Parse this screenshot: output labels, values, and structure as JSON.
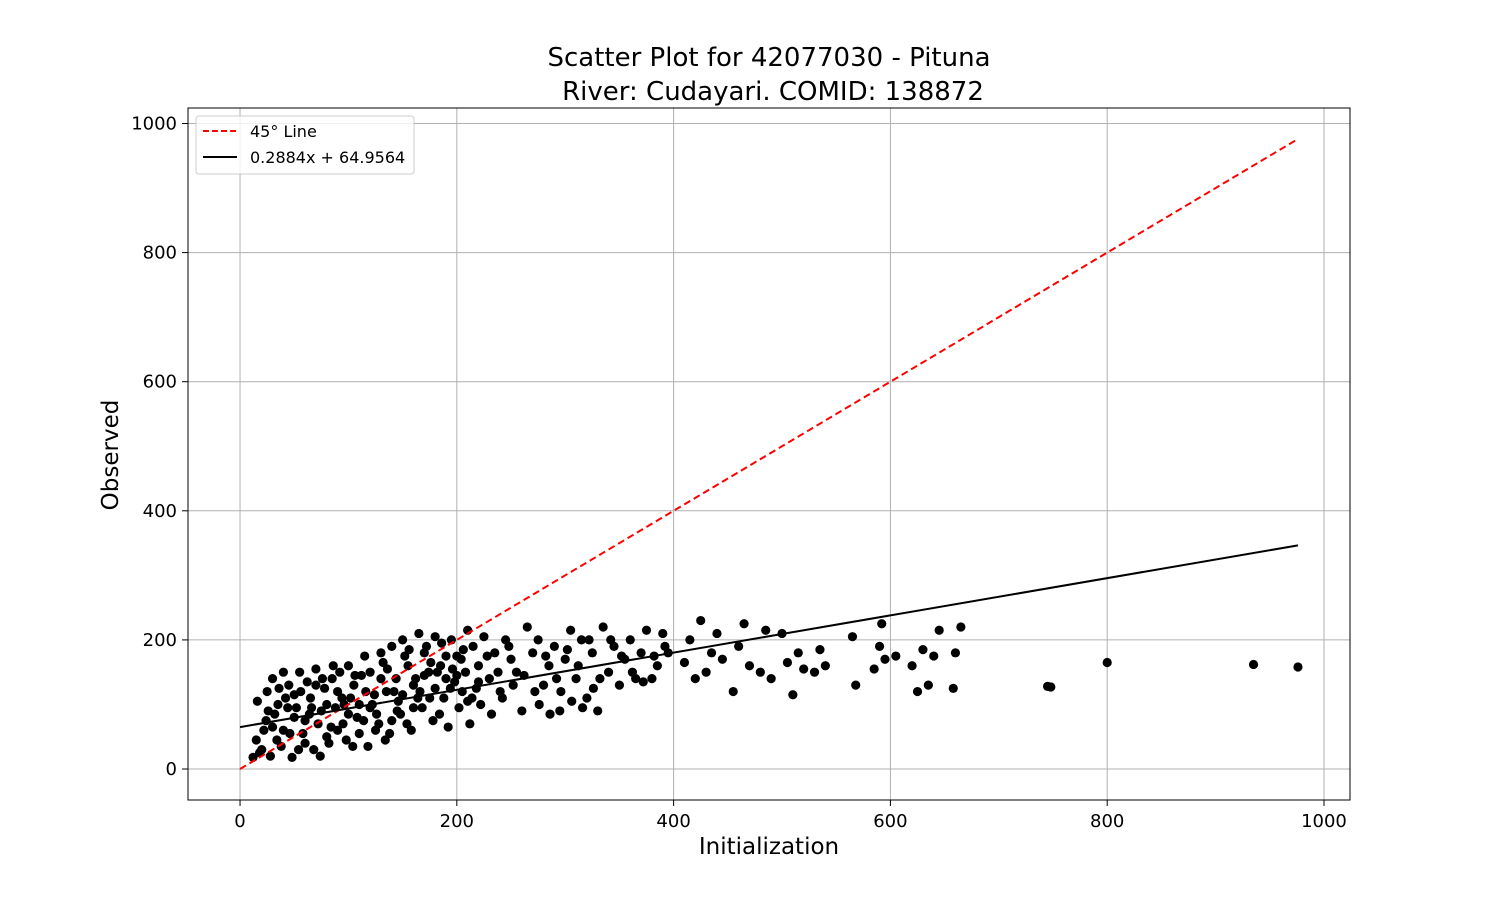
{
  "chart_data": {
    "type": "scatter",
    "title": "Scatter Plot for 42077030 - Pituna",
    "subtitle": "River: Cudayari. COMID: 138872",
    "xlabel": "Initialization",
    "ylabel": "Observed",
    "xlim": [
      -48,
      1024
    ],
    "ylim": [
      -48,
      1024
    ],
    "xticks": [
      0,
      200,
      400,
      600,
      800,
      1000
    ],
    "yticks": [
      0,
      200,
      400,
      600,
      800,
      1000
    ],
    "grid": true,
    "legend_position": "top-left",
    "series": [
      {
        "name": "45° Line",
        "kind": "line",
        "style": "dashed",
        "color": "#ff0000",
        "x": [
          0,
          976
        ],
        "y": [
          0,
          976
        ]
      },
      {
        "name": "0.2884x + 64.9564",
        "kind": "line",
        "style": "solid",
        "color": "#000000",
        "x": [
          0,
          976
        ],
        "y": [
          64.9564,
          346.44
        ]
      },
      {
        "name": "Observed vs Initialization",
        "kind": "points",
        "color": "#000000",
        "points": [
          [
            20,
            30
          ],
          [
            25,
            120
          ],
          [
            30,
            140
          ],
          [
            35,
            100
          ],
          [
            40,
            60
          ],
          [
            45,
            130
          ],
          [
            50,
            80
          ],
          [
            55,
            150
          ],
          [
            60,
            40
          ],
          [
            65,
            110
          ],
          [
            70,
            155
          ],
          [
            75,
            90
          ],
          [
            80,
            50
          ],
          [
            85,
            140
          ],
          [
            90,
            120
          ],
          [
            95,
            70
          ],
          [
            100,
            160
          ],
          [
            105,
            130
          ],
          [
            110,
            100
          ],
          [
            115,
            175
          ],
          [
            120,
            150
          ],
          [
            125,
            60
          ],
          [
            130,
            180
          ],
          [
            135,
            120
          ],
          [
            140,
            190
          ],
          [
            145,
            90
          ],
          [
            150,
            200
          ],
          [
            155,
            160
          ],
          [
            160,
            130
          ],
          [
            165,
            210
          ],
          [
            170,
            180
          ],
          [
            175,
            110
          ],
          [
            180,
            205
          ],
          [
            185,
            160
          ],
          [
            190,
            140
          ],
          [
            195,
            200
          ],
          [
            200,
            175
          ],
          [
            205,
            120
          ],
          [
            210,
            215
          ],
          [
            215,
            190
          ],
          [
            220,
            160
          ],
          [
            225,
            205
          ],
          [
            230,
            140
          ],
          [
            235,
            180
          ],
          [
            240,
            120
          ],
          [
            245,
            200
          ],
          [
            250,
            170
          ],
          [
            255,
            150
          ],
          [
            260,
            90
          ],
          [
            265,
            220
          ],
          [
            270,
            180
          ],
          [
            275,
            200
          ],
          [
            280,
            130
          ],
          [
            285,
            160
          ],
          [
            290,
            190
          ],
          [
            295,
            90
          ],
          [
            300,
            170
          ],
          [
            305,
            215
          ],
          [
            310,
            140
          ],
          [
            315,
            200
          ],
          [
            320,
            110
          ],
          [
            325,
            180
          ],
          [
            330,
            90
          ],
          [
            335,
            220
          ],
          [
            340,
            150
          ],
          [
            345,
            190
          ],
          [
            350,
            130
          ],
          [
            355,
            170
          ],
          [
            360,
            200
          ],
          [
            365,
            140
          ],
          [
            370,
            180
          ],
          [
            375,
            215
          ],
          [
            380,
            140
          ],
          [
            385,
            160
          ],
          [
            390,
            210
          ],
          [
            395,
            180
          ],
          [
            410,
            165
          ],
          [
            415,
            200
          ],
          [
            420,
            140
          ],
          [
            425,
            230
          ],
          [
            430,
            150
          ],
          [
            435,
            180
          ],
          [
            440,
            210
          ],
          [
            445,
            170
          ],
          [
            455,
            120
          ],
          [
            460,
            190
          ],
          [
            465,
            225
          ],
          [
            470,
            160
          ],
          [
            480,
            150
          ],
          [
            485,
            215
          ],
          [
            490,
            140
          ],
          [
            500,
            210
          ],
          [
            505,
            165
          ],
          [
            510,
            115
          ],
          [
            515,
            180
          ],
          [
            520,
            155
          ],
          [
            530,
            150
          ],
          [
            535,
            185
          ],
          [
            540,
            160
          ],
          [
            565,
            205
          ],
          [
            568,
            130
          ],
          [
            585,
            155
          ],
          [
            590,
            190
          ],
          [
            592,
            225
          ],
          [
            595,
            170
          ],
          [
            605,
            175
          ],
          [
            620,
            160
          ],
          [
            625,
            120
          ],
          [
            630,
            185
          ],
          [
            635,
            130
          ],
          [
            640,
            175
          ],
          [
            645,
            215
          ],
          [
            658,
            125
          ],
          [
            660,
            180
          ],
          [
            665,
            220
          ],
          [
            745,
            128
          ],
          [
            748,
            127
          ],
          [
            800,
            165
          ],
          [
            935,
            162
          ],
          [
            976,
            158
          ],
          [
            12,
            18
          ],
          [
            15,
            45
          ],
          [
            18,
            25
          ],
          [
            22,
            60
          ],
          [
            28,
            20
          ],
          [
            32,
            85
          ],
          [
            38,
            35
          ],
          [
            42,
            110
          ],
          [
            48,
            18
          ],
          [
            52,
            95
          ],
          [
            58,
            55
          ],
          [
            62,
            135
          ],
          [
            68,
            30
          ],
          [
            72,
            70
          ],
          [
            78,
            125
          ],
          [
            82,
            40
          ],
          [
            88,
            95
          ],
          [
            92,
            150
          ],
          [
            98,
            45
          ],
          [
            102,
            110
          ],
          [
            108,
            80
          ],
          [
            112,
            145
          ],
          [
            118,
            35
          ],
          [
            122,
            100
          ],
          [
            128,
            70
          ],
          [
            132,
            165
          ],
          [
            138,
            55
          ],
          [
            142,
            120
          ],
          [
            148,
            85
          ],
          [
            152,
            175
          ],
          [
            158,
            60
          ],
          [
            162,
            140
          ],
          [
            168,
            95
          ],
          [
            172,
            190
          ],
          [
            178,
            75
          ],
          [
            182,
            150
          ],
          [
            188,
            110
          ],
          [
            192,
            65
          ],
          [
            198,
            135
          ],
          [
            202,
            95
          ],
          [
            208,
            150
          ],
          [
            212,
            70
          ],
          [
            218,
            125
          ],
          [
            222,
            100
          ],
          [
            228,
            175
          ],
          [
            232,
            85
          ],
          [
            238,
            150
          ],
          [
            242,
            110
          ],
          [
            248,
            190
          ],
          [
            252,
            130
          ],
          [
            24,
            75
          ],
          [
            34,
            45
          ],
          [
            44,
            95
          ],
          [
            54,
            30
          ],
          [
            64,
            85
          ],
          [
            74,
            20
          ],
          [
            84,
            65
          ],
          [
            94,
            110
          ],
          [
            104,
            35
          ],
          [
            114,
            75
          ],
          [
            124,
            115
          ],
          [
            134,
            45
          ],
          [
            144,
            140
          ],
          [
            154,
            70
          ],
          [
            164,
            110
          ],
          [
            174,
            150
          ],
          [
            184,
            85
          ],
          [
            194,
            125
          ],
          [
            204,
            170
          ],
          [
            214,
            110
          ],
          [
            16,
            105
          ],
          [
            26,
            90
          ],
          [
            36,
            125
          ],
          [
            46,
            55
          ],
          [
            56,
            120
          ],
          [
            66,
            95
          ],
          [
            76,
            140
          ],
          [
            86,
            160
          ],
          [
            96,
            100
          ],
          [
            106,
            145
          ],
          [
            116,
            120
          ],
          [
            126,
            85
          ],
          [
            136,
            155
          ],
          [
            146,
            105
          ],
          [
            156,
            185
          ],
          [
            166,
            120
          ],
          [
            176,
            165
          ],
          [
            186,
            195
          ],
          [
            196,
            155
          ],
          [
            206,
            185
          ],
          [
            30,
            65
          ],
          [
            40,
            150
          ],
          [
            50,
            115
          ],
          [
            60,
            75
          ],
          [
            70,
            130
          ],
          [
            80,
            100
          ],
          [
            90,
            60
          ],
          [
            100,
            85
          ],
          [
            110,
            55
          ],
          [
            120,
            95
          ],
          [
            130,
            140
          ],
          [
            140,
            75
          ],
          [
            150,
            115
          ],
          [
            160,
            95
          ],
          [
            170,
            145
          ],
          [
            180,
            125
          ],
          [
            190,
            175
          ],
          [
            200,
            145
          ],
          [
            210,
            105
          ],
          [
            220,
            135
          ],
          [
            262,
            145
          ],
          [
            272,
            120
          ],
          [
            282,
            175
          ],
          [
            292,
            140
          ],
          [
            302,
            185
          ],
          [
            312,
            160
          ],
          [
            322,
            200
          ],
          [
            332,
            140
          ],
          [
            342,
            200
          ],
          [
            352,
            175
          ],
          [
            362,
            150
          ],
          [
            372,
            135
          ],
          [
            382,
            175
          ],
          [
            392,
            190
          ],
          [
            276,
            100
          ],
          [
            286,
            85
          ],
          [
            296,
            120
          ],
          [
            306,
            105
          ],
          [
            316,
            95
          ],
          [
            326,
            125
          ]
        ]
      }
    ]
  }
}
